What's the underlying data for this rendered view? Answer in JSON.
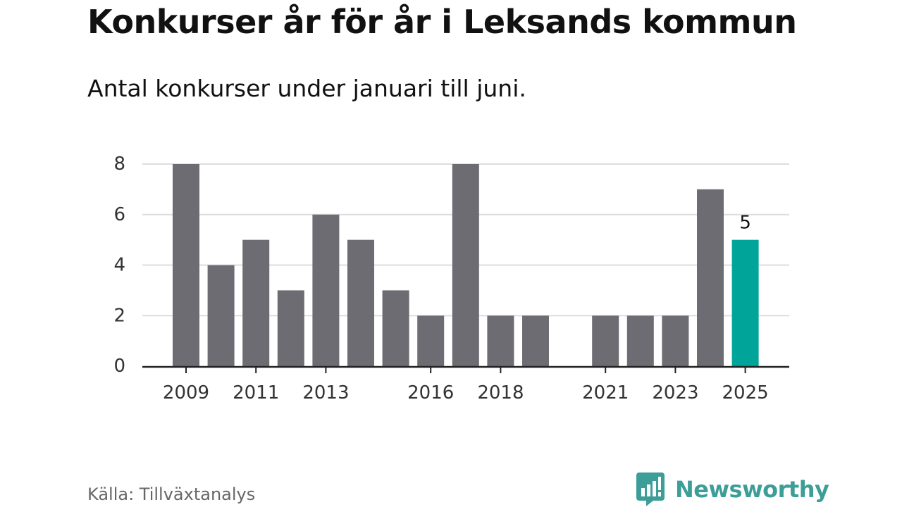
{
  "header": {
    "title": "Konkurser år för år i Leksands kommun",
    "subtitle": "Antal konkurser under januari till juni."
  },
  "chart_data": {
    "type": "bar",
    "categories": [
      "2009",
      "2010",
      "2011",
      "2012",
      "2013",
      "2014",
      "2015",
      "2016",
      "2017",
      "2018",
      "2019",
      "2020",
      "2021",
      "2022",
      "2023",
      "2024",
      "2025"
    ],
    "x_tick_labels": [
      "2009",
      "2011",
      "2013",
      "2016",
      "2018",
      "2021",
      "2023",
      "2025"
    ],
    "values": [
      8,
      4,
      5,
      3,
      6,
      5,
      3,
      2,
      8,
      2,
      2,
      0,
      2,
      2,
      2,
      7,
      5
    ],
    "ylim": [
      0,
      8
    ],
    "yticks": [
      0,
      2,
      4,
      6,
      8
    ],
    "highlight_category": "2025",
    "highlight_label": "5",
    "grid": true,
    "colors": {
      "bar": "#6d6c72",
      "highlight": "#00a499",
      "grid": "#dddddd",
      "axis": "#222222"
    }
  },
  "footer": {
    "source": "Källa: Tillväxtanalys",
    "brand_name": "Newsworthy",
    "brand_icon": "newsworthy-logo-icon",
    "brand_color": "#3d9e98"
  }
}
